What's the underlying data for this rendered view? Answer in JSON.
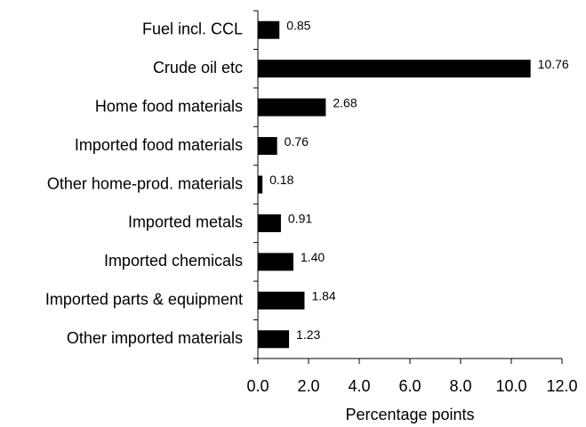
{
  "chart_data": {
    "type": "bar",
    "orientation": "horizontal",
    "categories": [
      "Fuel incl. CCL",
      "Crude oil etc",
      "Home food materials",
      "Imported food materials",
      "Other home-prod. materials",
      "Imported metals",
      "Imported chemicals",
      "Imported parts & equipment",
      "Other imported materials"
    ],
    "values": [
      0.85,
      10.76,
      2.68,
      0.76,
      0.18,
      0.91,
      1.4,
      1.84,
      1.23
    ],
    "value_labels": [
      "0.85",
      "10.76",
      "2.68",
      "0.76",
      "0.18",
      "0.91",
      "1.40",
      "1.84",
      "1.23"
    ],
    "color": "#000000",
    "x_label": "Percentage points",
    "xlim": [
      0,
      12
    ],
    "xticks": [
      {
        "value": 0,
        "label": "0.0"
      },
      {
        "value": 2,
        "label": "2.0"
      },
      {
        "value": 4,
        "label": "4.0"
      },
      {
        "value": 6,
        "label": "6.0"
      },
      {
        "value": 8,
        "label": "8.0"
      },
      {
        "value": 10,
        "label": "10.0"
      },
      {
        "value": 12,
        "label": "12.0"
      }
    ],
    "grid": false
  }
}
